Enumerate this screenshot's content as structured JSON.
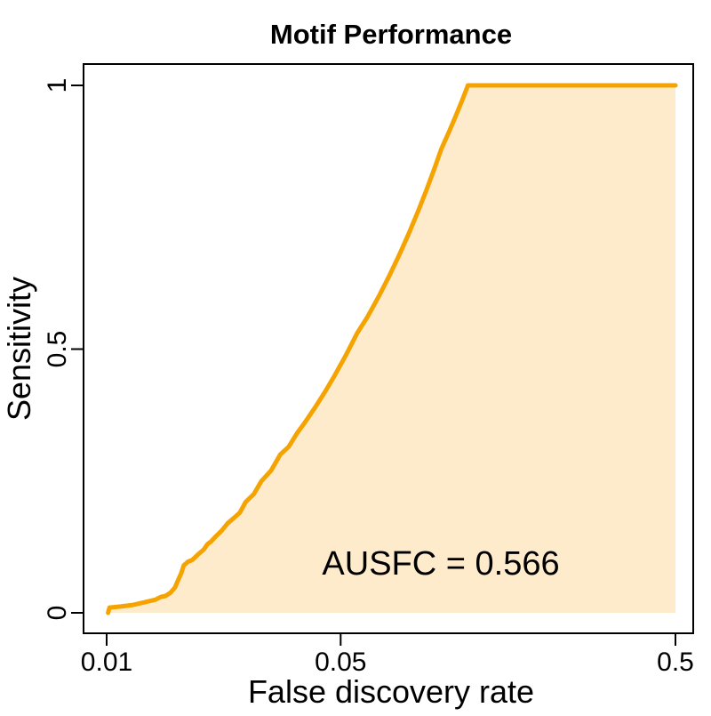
{
  "chart_data": {
    "type": "area",
    "title": "Motif Performance",
    "xlabel": "False discovery rate",
    "ylabel": "Sensitivity",
    "x_scale": "log",
    "xlim": [
      0.01,
      0.5
    ],
    "ylim": [
      0,
      1
    ],
    "x_ticks": [
      {
        "value": 0.01,
        "label": "0.01"
      },
      {
        "value": 0.05,
        "label": "0.05"
      },
      {
        "value": 0.5,
        "label": "0.5"
      }
    ],
    "y_ticks": [
      {
        "value": 0,
        "label": "0"
      },
      {
        "value": 0.5,
        "label": "0.5"
      },
      {
        "value": 1,
        "label": "1"
      }
    ],
    "grid": false,
    "line_color": "#f5a300",
    "fill_color": "#fdebcc",
    "annotation": {
      "text": "AUSFC = 0.566"
    },
    "series": [
      {
        "x": [
          0.0101,
          0.0102,
          0.011,
          0.012,
          0.013,
          0.014,
          0.0145,
          0.015,
          0.0155,
          0.016,
          0.0163,
          0.0167,
          0.017,
          0.0175,
          0.018,
          0.0187,
          0.0195,
          0.02,
          0.0205,
          0.0212,
          0.022,
          0.023,
          0.024,
          0.025,
          0.026,
          0.0275,
          0.029,
          0.031,
          0.033,
          0.035,
          0.037,
          0.039,
          0.042,
          0.045,
          0.048,
          0.052,
          0.056,
          0.06,
          0.065,
          0.07,
          0.075,
          0.08,
          0.085,
          0.09,
          0.095,
          0.1,
          0.105,
          0.11,
          0.115,
          0.12,
          0.5
        ],
        "y": [
          0.0,
          0.01,
          0.012,
          0.015,
          0.02,
          0.025,
          0.03,
          0.032,
          0.038,
          0.048,
          0.06,
          0.075,
          0.09,
          0.097,
          0.1,
          0.11,
          0.12,
          0.13,
          0.135,
          0.145,
          0.155,
          0.17,
          0.18,
          0.19,
          0.21,
          0.225,
          0.25,
          0.27,
          0.3,
          0.315,
          0.34,
          0.36,
          0.39,
          0.42,
          0.45,
          0.49,
          0.53,
          0.56,
          0.6,
          0.64,
          0.68,
          0.72,
          0.76,
          0.8,
          0.84,
          0.88,
          0.91,
          0.94,
          0.97,
          1.0,
          1.0
        ]
      }
    ]
  }
}
